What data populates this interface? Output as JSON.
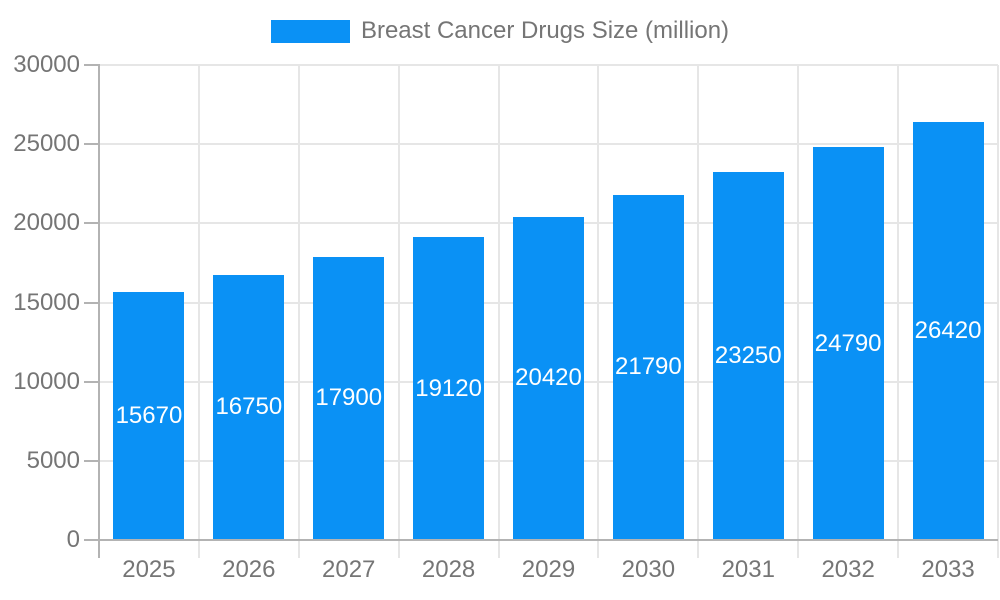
{
  "chart_data": {
    "type": "bar",
    "title": "Breast Cancer Drugs Size (million)",
    "categories": [
      "2025",
      "2026",
      "2027",
      "2028",
      "2029",
      "2030",
      "2031",
      "2032",
      "2033"
    ],
    "values": [
      15670,
      16750,
      17900,
      19120,
      20420,
      21790,
      23250,
      24790,
      26420
    ],
    "bar_value_labels": [
      "15670",
      "16750",
      "17900",
      "19120",
      "20420",
      "21790",
      "23250",
      "24790",
      "26420"
    ],
    "xlabel": "",
    "ylabel": "",
    "ylim": [
      0,
      30000
    ],
    "yticks": [
      0,
      5000,
      10000,
      15000,
      20000,
      25000,
      30000
    ],
    "ytick_labels": [
      "0",
      "5000",
      "10000",
      "15000",
      "20000",
      "25000",
      "30000"
    ],
    "grid": true,
    "legend_position": "top-center",
    "colors": {
      "bar": "#0A91F5",
      "value_label": "#FFFFFF",
      "axis_text": "#757575",
      "gridline": "#E6E6E6",
      "axis_line": "#B3B3B3",
      "background": "#FFFFFF"
    }
  }
}
